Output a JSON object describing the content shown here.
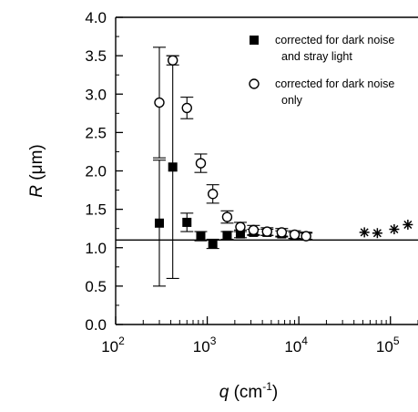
{
  "chart_data": {
    "type": "scatter",
    "x_scale": "log",
    "xlim": [
      100,
      200000
    ],
    "ylim": [
      0.0,
      4.0
    ],
    "grid": false,
    "legend_placement": "top-right",
    "ylabel": {
      "italic": "R",
      "rest": " (μm)"
    },
    "xlabel": {
      "italic": "q",
      "rest": " (cm",
      "sup": "-1",
      "close": ")"
    },
    "y_ticks": [
      {
        "value": 0.0,
        "label": "0.0"
      },
      {
        "value": 0.5,
        "label": "0.5"
      },
      {
        "value": 1.0,
        "label": "1.0"
      },
      {
        "value": 1.5,
        "label": "1.5"
      },
      {
        "value": 2.0,
        "label": "2.0"
      },
      {
        "value": 2.5,
        "label": "2.5"
      },
      {
        "value": 3.0,
        "label": "3.0"
      },
      {
        "value": 3.5,
        "label": "3.5"
      },
      {
        "value": 4.0,
        "label": "4.0"
      }
    ],
    "x_ticks": [
      {
        "value": 100,
        "base": "10",
        "exp": "2"
      },
      {
        "value": 1000,
        "base": "10",
        "exp": "3"
      },
      {
        "value": 10000,
        "base": "10",
        "exp": "4"
      },
      {
        "value": 100000,
        "base": "10",
        "exp": "5"
      }
    ],
    "reference_line": {
      "y": 1.1
    },
    "series": [
      {
        "name": "corrected for dark noise and stray light",
        "legend_lines": [
          "corrected for dark noise",
          "and stray light"
        ],
        "marker": "filled-square",
        "points": [
          {
            "x": 300,
            "y": 1.32,
            "err": 0.82
          },
          {
            "x": 420,
            "y": 2.05,
            "err": 1.45
          },
          {
            "x": 600,
            "y": 1.33,
            "err": 0.12
          },
          {
            "x": 850,
            "y": 1.15,
            "err": 0.06
          },
          {
            "x": 1150,
            "y": 1.05,
            "err": 0.06
          },
          {
            "x": 1650,
            "y": 1.16,
            "err": 0.05
          },
          {
            "x": 2300,
            "y": 1.18,
            "err": 0.05
          },
          {
            "x": 3200,
            "y": 1.2,
            "err": 0.04
          },
          {
            "x": 4500,
            "y": 1.2,
            "err": 0.04
          },
          {
            "x": 6500,
            "y": 1.18,
            "err": 0.04
          },
          {
            "x": 9000,
            "y": 1.16,
            "err": 0.04
          },
          {
            "x": 12000,
            "y": 1.15,
            "err": 0.04
          }
        ]
      },
      {
        "name": "corrected for dark noise only",
        "legend_lines": [
          "corrected for dark noise",
          "only"
        ],
        "marker": "open-circle",
        "points": [
          {
            "x": 300,
            "y": 2.89,
            "err": 0.72
          },
          {
            "x": 420,
            "y": 3.44,
            "err": 0.06
          },
          {
            "x": 600,
            "y": 2.82,
            "err": 0.14
          },
          {
            "x": 850,
            "y": 2.1,
            "err": 0.12
          },
          {
            "x": 1150,
            "y": 1.7,
            "err": 0.12
          },
          {
            "x": 1650,
            "y": 1.4,
            "err": 0.08
          },
          {
            "x": 2300,
            "y": 1.27,
            "err": 0.06
          },
          {
            "x": 3200,
            "y": 1.23,
            "err": 0.06
          },
          {
            "x": 4500,
            "y": 1.21,
            "err": 0.05
          },
          {
            "x": 6500,
            "y": 1.2,
            "err": 0.05
          },
          {
            "x": 9000,
            "y": 1.17,
            "err": 0.05
          },
          {
            "x": 12000,
            "y": 1.15,
            "err": 0.05
          }
        ]
      },
      {
        "name": "",
        "marker": "asterisk",
        "points": [
          {
            "x": 52000,
            "y": 1.2
          },
          {
            "x": 72000,
            "y": 1.19
          },
          {
            "x": 110000,
            "y": 1.24
          },
          {
            "x": 155000,
            "y": 1.3
          }
        ]
      }
    ]
  }
}
